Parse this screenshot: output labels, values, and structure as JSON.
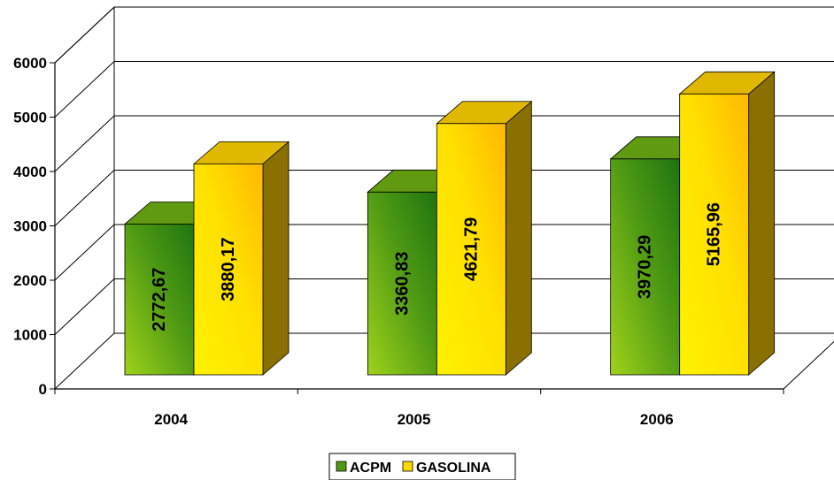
{
  "chart_data": {
    "type": "bar",
    "title": "",
    "xlabel": "",
    "ylabel": "",
    "categories": [
      "2004",
      "2005",
      "2006"
    ],
    "series": [
      {
        "name": "ACPM",
        "values": [
          2772.67,
          3360.83,
          3970.29
        ],
        "labels": [
          "2772,67",
          "3360,83",
          "3970,29"
        ],
        "color": "#6fae12"
      },
      {
        "name": "GASOLINA",
        "values": [
          3880.17,
          4621.79,
          5165.96
        ],
        "labels": [
          "3880,17",
          "4621,79",
          "5165,96"
        ],
        "color": "#ffd800"
      }
    ],
    "ylim": [
      0,
      6000
    ],
    "yticks": [
      "0",
      "1000",
      "2000",
      "3000",
      "4000",
      "5000",
      "6000"
    ],
    "grid": true,
    "style": "3d-column",
    "legend": "bottom"
  }
}
